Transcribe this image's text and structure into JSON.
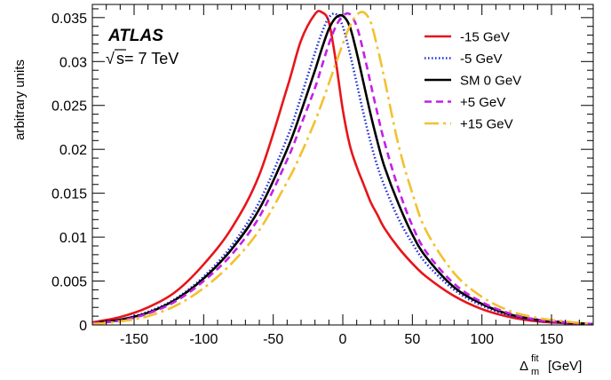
{
  "chart_data": {
    "type": "line",
    "title": "",
    "experiment_label": "ATLAS",
    "sqrt_symbol": "√",
    "energy_label": "s= 7 TeV",
    "ylabel": "arbitrary units",
    "xlabel_main": "Δ",
    "xlabel_sup": "fit",
    "xlabel_sub": "m",
    "xlabel_unit": "[GeV]",
    "xlim": [
      -180,
      180
    ],
    "ylim": [
      0,
      0.0365
    ],
    "grid": false,
    "legend_position": "top-right",
    "x_ticks": [
      {
        "value": -150,
        "label": "-150"
      },
      {
        "value": -100,
        "label": "-100"
      },
      {
        "value": -50,
        "label": "-50"
      },
      {
        "value": 0,
        "label": "0"
      },
      {
        "value": 50,
        "label": "50"
      },
      {
        "value": 100,
        "label": "100"
      },
      {
        "value": 150,
        "label": "150"
      }
    ],
    "y_ticks": [
      {
        "value": 0,
        "label": "0"
      },
      {
        "value": 0.005,
        "label": "0.005"
      },
      {
        "value": 0.01,
        "label": "0.01"
      },
      {
        "value": 0.015,
        "label": "0.015"
      },
      {
        "value": 0.02,
        "label": "0.02"
      },
      {
        "value": 0.025,
        "label": "0.025"
      },
      {
        "value": 0.03,
        "label": "0.03"
      },
      {
        "value": 0.035,
        "label": "0.035"
      }
    ],
    "x": [
      -180,
      -160,
      -140,
      -120,
      -100,
      -80,
      -60,
      -40,
      -30,
      -20,
      -15,
      -10,
      -5,
      0,
      5,
      10,
      15,
      20,
      25,
      30,
      40,
      50,
      60,
      80,
      100,
      120,
      140,
      160,
      180
    ],
    "series": [
      {
        "name": "-15 GeV",
        "color": "#e8141a",
        "dash": "solid",
        "values": [
          0.0003,
          0.0009,
          0.002,
          0.0038,
          0.0069,
          0.011,
          0.0171,
          0.027,
          0.0324,
          0.0354,
          0.0356,
          0.0345,
          0.03,
          0.0245,
          0.0205,
          0.018,
          0.016,
          0.014,
          0.0125,
          0.011,
          0.0088,
          0.007,
          0.0055,
          0.0033,
          0.0018,
          0.0009,
          0.0004,
          0.0002,
          0.0001
        ]
      },
      {
        "name": "-5 GeV",
        "color": "#1f2bd6",
        "dash": "dotted",
        "values": [
          0.0002,
          0.0006,
          0.0015,
          0.003,
          0.0055,
          0.009,
          0.014,
          0.0213,
          0.026,
          0.031,
          0.0333,
          0.035,
          0.0354,
          0.034,
          0.031,
          0.0275,
          0.024,
          0.0208,
          0.018,
          0.0158,
          0.0121,
          0.0093,
          0.007,
          0.004,
          0.0022,
          0.0011,
          0.0005,
          0.0002,
          0.0001
        ]
      },
      {
        "name": "SM 0 GeV",
        "color": "#000000",
        "dash": "solid",
        "values": [
          0.0002,
          0.0006,
          0.0014,
          0.0029,
          0.0053,
          0.0086,
          0.0132,
          0.02,
          0.0243,
          0.029,
          0.0315,
          0.0337,
          0.035,
          0.0352,
          0.034,
          0.031,
          0.0275,
          0.024,
          0.0208,
          0.018,
          0.0138,
          0.0103,
          0.0077,
          0.0043,
          0.0024,
          0.0012,
          0.0006,
          0.0003,
          0.0001
        ]
      },
      {
        "name": "+5 GeV",
        "color": "#c41fe6",
        "dash": "dashed",
        "values": [
          0.0002,
          0.0005,
          0.0013,
          0.0027,
          0.005,
          0.008,
          0.0123,
          0.0188,
          0.0228,
          0.027,
          0.0295,
          0.032,
          0.034,
          0.0352,
          0.0354,
          0.034,
          0.031,
          0.0275,
          0.024,
          0.0208,
          0.0155,
          0.0113,
          0.0083,
          0.0047,
          0.0026,
          0.0013,
          0.0006,
          0.0003,
          0.0001
        ]
      },
      {
        "name": "+15 GeV",
        "color": "#f2c12e",
        "dash": "dashdot",
        "values": [
          0.0001,
          0.0004,
          0.001,
          0.0022,
          0.0042,
          0.007,
          0.0108,
          0.0163,
          0.0195,
          0.0232,
          0.0253,
          0.0275,
          0.0298,
          0.032,
          0.034,
          0.0353,
          0.0356,
          0.0345,
          0.0315,
          0.028,
          0.0205,
          0.015,
          0.0107,
          0.0059,
          0.0032,
          0.0016,
          0.0008,
          0.0004,
          0.0001
        ]
      }
    ]
  }
}
